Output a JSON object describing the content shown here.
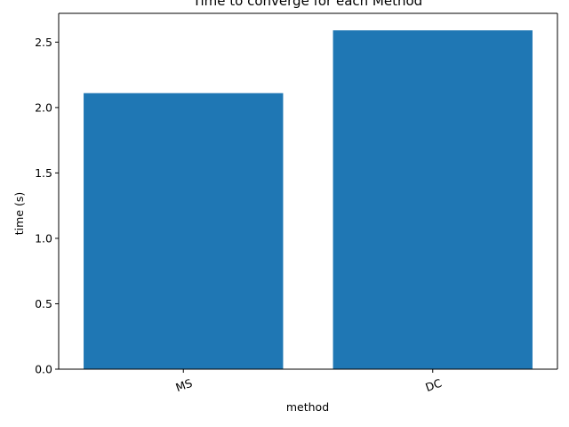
{
  "chart_data": {
    "type": "bar",
    "title": "Time to converge for each Method",
    "xlabel": "method",
    "ylabel": "time (s)",
    "categories": [
      "MS",
      "DC"
    ],
    "values": [
      2.11,
      2.59
    ],
    "ylim": [
      0,
      2.72
    ],
    "yticks": [
      0.0,
      0.5,
      1.0,
      1.5,
      2.0,
      2.5
    ],
    "ytick_labels": [
      "0.0",
      "0.5",
      "1.0",
      "1.5",
      "2.0",
      "2.5"
    ],
    "xtick_rotation_deg": 20,
    "grid": false,
    "legend": "none",
    "bar_color": "#1f77b4"
  }
}
